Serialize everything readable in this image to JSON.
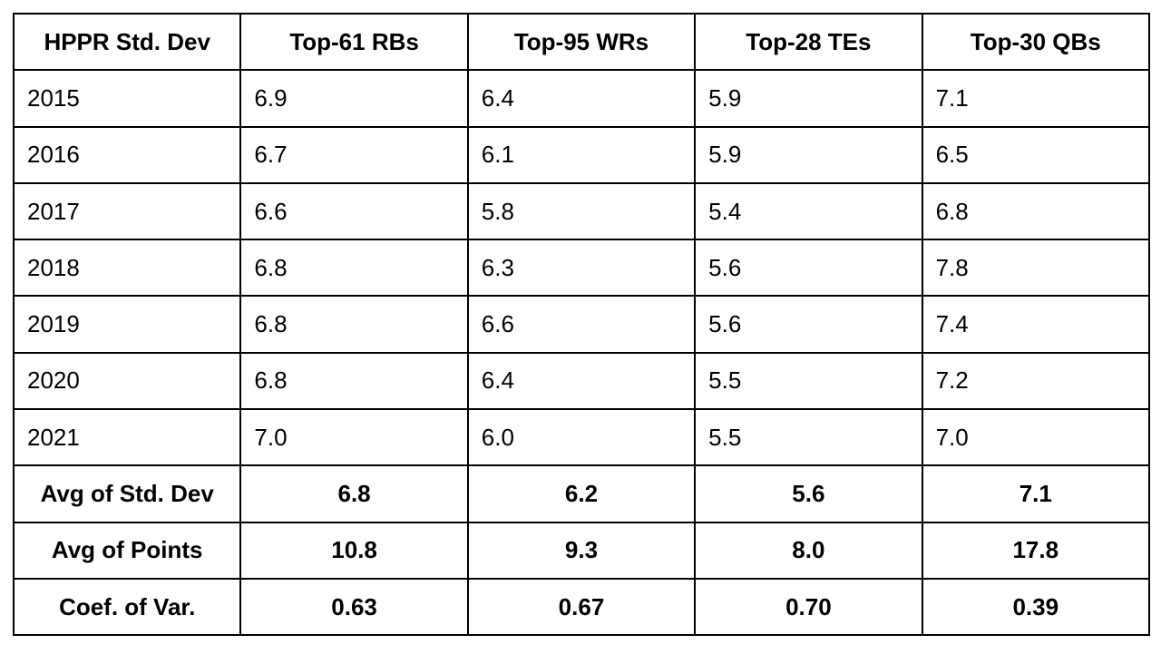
{
  "table": {
    "header": [
      "HPPR Std. Dev",
      "Top-61 RBs",
      "Top-95 WRs",
      "Top-28 TEs",
      "Top-30 QBs"
    ],
    "rows": [
      [
        "2015",
        "6.9",
        "6.4",
        "5.9",
        "7.1"
      ],
      [
        "2016",
        "6.7",
        "6.1",
        "5.9",
        "6.5"
      ],
      [
        "2017",
        "6.6",
        "5.8",
        "5.4",
        "6.8"
      ],
      [
        "2018",
        "6.8",
        "6.3",
        "5.6",
        "7.8"
      ],
      [
        "2019",
        "6.8",
        "6.6",
        "5.6",
        "7.4"
      ],
      [
        "2020",
        "6.8",
        "6.4",
        "5.5",
        "7.2"
      ],
      [
        "2021",
        "7.0",
        "6.0",
        "5.5",
        "7.0"
      ]
    ],
    "summary_rows": [
      [
        "Avg of Std. Dev",
        "6.8",
        "6.2",
        "5.6",
        "7.1"
      ],
      [
        "Avg of Points",
        "10.8",
        "9.3",
        "8.0",
        "17.8"
      ],
      [
        "Coef. of Var.",
        "0.63",
        "0.67",
        "0.70",
        "0.39"
      ]
    ]
  }
}
